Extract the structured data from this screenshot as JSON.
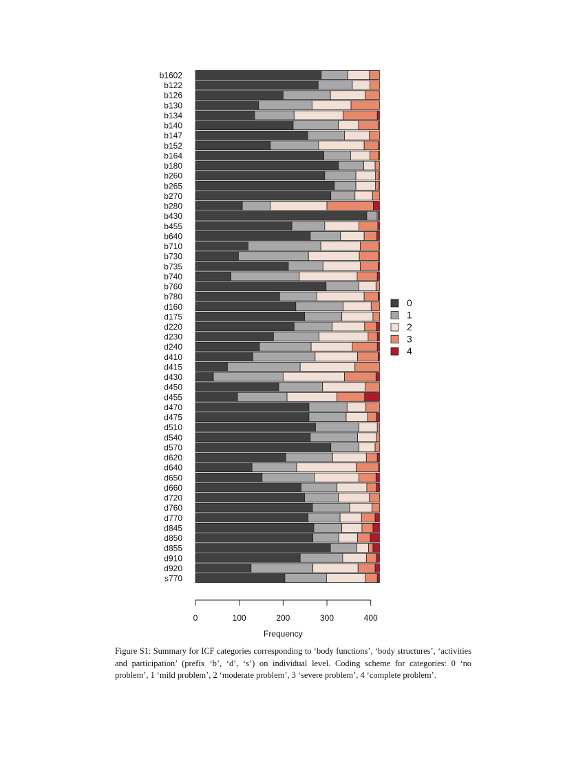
{
  "chart_data": {
    "type": "bar",
    "orientation": "horizontal",
    "stacked": true,
    "xlabel": "Frequency",
    "ylabel": "",
    "xlim": [
      0,
      420
    ],
    "xticks": [
      0,
      100,
      200,
      300,
      400
    ],
    "grid": false,
    "legend_placement": "right",
    "categories": [
      "b1602",
      "b122",
      "b126",
      "b130",
      "b134",
      "b140",
      "b147",
      "b152",
      "b164",
      "b180",
      "b260",
      "b265",
      "b270",
      "b280",
      "b430",
      "b455",
      "b640",
      "b710",
      "b730",
      "b735",
      "b740",
      "b760",
      "b780",
      "d160",
      "d175",
      "d220",
      "d230",
      "d240",
      "d410",
      "d415",
      "d430",
      "d450",
      "d455",
      "d470",
      "d475",
      "d510",
      "d540",
      "d570",
      "d620",
      "d640",
      "d650",
      "d660",
      "d720",
      "d760",
      "d770",
      "d845",
      "d850",
      "d855",
      "d910",
      "d920",
      "s770"
    ],
    "series": [
      {
        "name": "0",
        "color": "#404040",
        "values": [
          287,
          280,
          200,
          144,
          135,
          223,
          256,
          171,
          293,
          326,
          295,
          317,
          309,
          107,
          391,
          220,
          262,
          120,
          98,
          212,
          81,
          298,
          192,
          229,
          249,
          225,
          178,
          146,
          131,
          73,
          41,
          190,
          96,
          259,
          259,
          274,
          262,
          309,
          206,
          129,
          152,
          241,
          249,
          267,
          257,
          270,
          268,
          308,
          239,
          127,
          204
        ]
      },
      {
        "name": "1",
        "color": "#a8a8a8",
        "values": [
          61,
          78,
          108,
          122,
          90,
          103,
          84,
          110,
          61,
          58,
          71,
          49,
          55,
          64,
          22,
          75,
          69,
          166,
          160,
          79,
          156,
          75,
          85,
          108,
          85,
          87,
          104,
          118,
          142,
          166,
          159,
          100,
          113,
          87,
          85,
          99,
          108,
          64,
          107,
          102,
          119,
          82,
          77,
          85,
          73,
          64,
          59,
          60,
          97,
          141,
          95
        ]
      },
      {
        "name": "2",
        "color": "#f2dfd6",
        "values": [
          49,
          40,
          79,
          89,
          112,
          46,
          57,
          104,
          44,
          26,
          45,
          45,
          40,
          129,
          3,
          78,
          54,
          90,
          116,
          85,
          132,
          39,
          108,
          64,
          71,
          74,
          112,
          94,
          97,
          125,
          140,
          97,
          114,
          43,
          49,
          42,
          43,
          37,
          77,
          136,
          102,
          68,
          71,
          51,
          49,
          46,
          43,
          27,
          54,
          103,
          88
        ]
      },
      {
        "name": "3",
        "color": "#e8896c",
        "values": [
          23,
          22,
          33,
          65,
          78,
          46,
          23,
          33,
          20,
          10,
          8,
          8,
          16,
          106,
          2,
          43,
          29,
          43,
          44,
          41,
          46,
          8,
          32,
          19,
          15,
          27,
          21,
          57,
          47,
          56,
          72,
          33,
          63,
          31,
          20,
          5,
          7,
          10,
          25,
          51,
          39,
          22,
          23,
          17,
          31,
          25,
          29,
          10,
          23,
          39,
          28
        ]
      },
      {
        "name": "4",
        "color": "#b2182b",
        "values": [
          0,
          0,
          0,
          0,
          5,
          2,
          0,
          2,
          2,
          0,
          1,
          1,
          0,
          14,
          2,
          4,
          6,
          1,
          2,
          3,
          5,
          0,
          3,
          0,
          0,
          7,
          5,
          5,
          3,
          0,
          8,
          0,
          34,
          0,
          7,
          0,
          0,
          0,
          5,
          2,
          8,
          7,
          0,
          0,
          10,
          15,
          21,
          15,
          7,
          10,
          5
        ]
      }
    ]
  },
  "caption": "Figure S1:  Summary for ICF categories corresponding to ‘body functions’, ‘body structures’, ‘activities and participation’ (prefix ‘b’, ‘d’, ‘s’) on individual level.  Coding scheme for categories: 0 ‘no problem’, 1 ‘mild problem’, 2 ‘moderate problem’, 3 ‘severe problem’, 4 ‘complete problem’."
}
